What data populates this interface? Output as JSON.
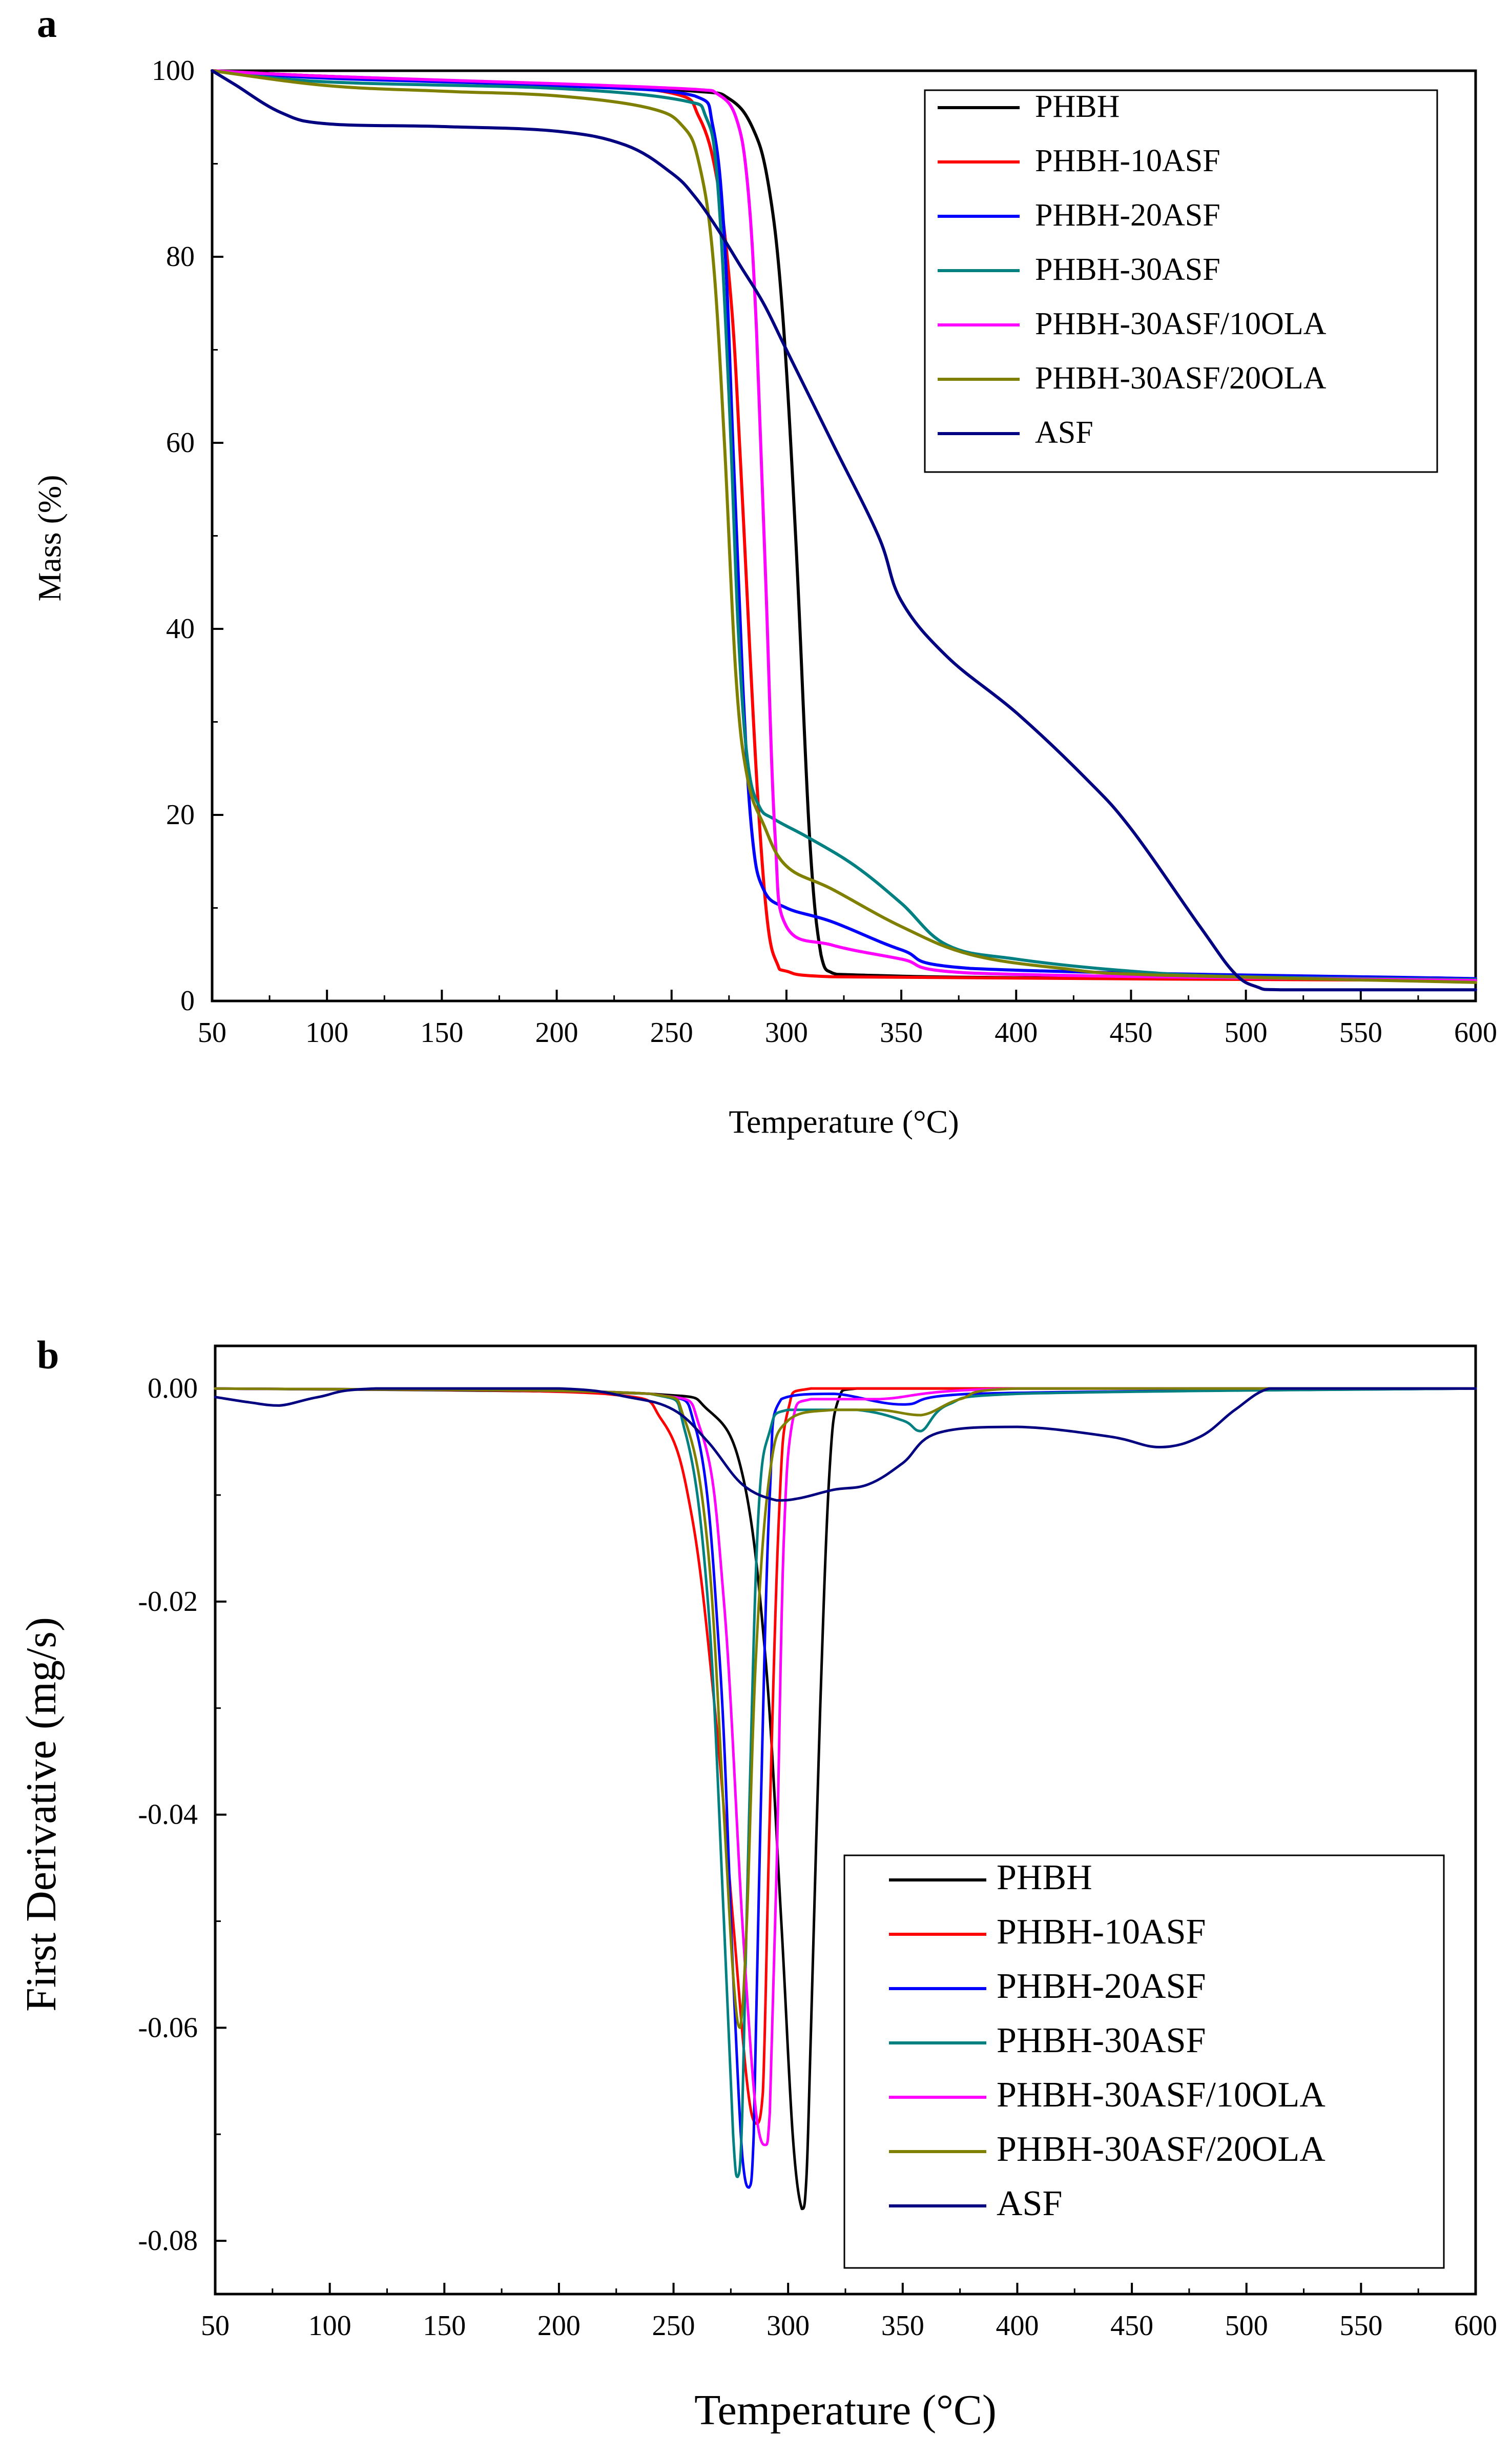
{
  "figure": {
    "panel_a_label": "a",
    "panel_b_label": "b"
  },
  "chart_data": [
    {
      "type": "line",
      "panel": "a",
      "title": "",
      "xlabel": "Temperature (°C)",
      "ylabel": "Mass (%)",
      "xlim": [
        50,
        600
      ],
      "ylim": [
        0,
        100
      ],
      "xticks": [
        50,
        100,
        150,
        200,
        250,
        300,
        350,
        400,
        450,
        500,
        550,
        600
      ],
      "yticks": [
        0,
        20,
        40,
        60,
        80,
        100
      ],
      "legend_position": "top-right",
      "series": [
        {
          "name": "PHBH",
          "color": "#000000",
          "x": [
            50,
            100,
            200,
            260,
            275,
            285,
            292,
            298,
            304,
            310,
            315,
            320,
            330,
            400,
            600
          ],
          "y": [
            100,
            99.4,
            98.5,
            97.8,
            97,
            94,
            88,
            75,
            50,
            18,
            5,
            3,
            2.8,
            2.5,
            2.3
          ]
        },
        {
          "name": "PHBH-10ASF",
          "color": "#ff0000",
          "x": [
            50,
            100,
            200,
            250,
            262,
            270,
            276,
            280,
            284,
            288,
            292,
            296,
            300,
            320,
            600
          ],
          "y": [
            100,
            99.4,
            98.5,
            97.6,
            95,
            88,
            75,
            58,
            38,
            20,
            8,
            4,
            3.2,
            2.6,
            2.2
          ]
        },
        {
          "name": "PHBH-20ASF",
          "color": "#0000ff",
          "x": [
            50,
            100,
            200,
            260,
            268,
            273,
            277,
            281,
            285,
            290,
            300,
            320,
            350,
            380,
            600
          ],
          "y": [
            100,
            99.2,
            98.4,
            97.3,
            94,
            82,
            58,
            34,
            18,
            12,
            10,
            8.5,
            5.5,
            3.5,
            2.4
          ]
        },
        {
          "name": "PHBH-30ASF",
          "color": "#008080",
          "x": [
            50,
            100,
            200,
            255,
            265,
            270,
            275,
            279,
            283,
            288,
            295,
            310,
            330,
            350,
            370,
            400,
            450,
            500,
            600
          ],
          "y": [
            100,
            98.8,
            98.1,
            96.8,
            95,
            88,
            65,
            40,
            26,
            21,
            19.5,
            17.5,
            14.5,
            10.5,
            6,
            4.5,
            3.2,
            2.6,
            2.3
          ]
        },
        {
          "name": "PHBH-30ASF/10OLA",
          "color": "#ff00ff",
          "x": [
            50,
            100,
            200,
            260,
            270,
            278,
            283,
            287,
            291,
            295,
            300,
            320,
            350,
            380,
            600
          ],
          "y": [
            100,
            99.4,
            98.6,
            98,
            97.5,
            95,
            88,
            72,
            45,
            18,
            8,
            6,
            4.5,
            3,
            2.2
          ]
        },
        {
          "name": "PHBH-30ASF/20OLA",
          "color": "#808000",
          "x": [
            50,
            100,
            150,
            200,
            240,
            255,
            262,
            268,
            273,
            278,
            283,
            290,
            300,
            320,
            350,
            380,
            420,
            460,
            600
          ],
          "y": [
            100,
            98.4,
            97.8,
            97.3,
            96,
            94,
            90,
            80,
            60,
            35,
            24,
            19,
            14.5,
            12,
            8,
            5,
            3.5,
            2.8,
            2
          ]
        },
        {
          "name": "ASF",
          "color": "#000080",
          "x": [
            50,
            60,
            80,
            100,
            150,
            200,
            230,
            250,
            260,
            270,
            280,
            290,
            300,
            320,
            340,
            350,
            370,
            400,
            430,
            450,
            480,
            495,
            505,
            515,
            600
          ],
          "y": [
            100,
            98.5,
            95.5,
            94.3,
            94,
            93.5,
            92,
            89,
            86.5,
            83,
            79,
            75,
            70,
            60,
            50,
            43,
            37,
            31,
            24,
            18.5,
            8,
            3,
            1.5,
            1.2,
            1.2
          ]
        }
      ]
    },
    {
      "type": "line",
      "panel": "b",
      "title": "",
      "xlabel": "Temperature (°C)",
      "ylabel": "First Derivative (mg/s)",
      "xlim": [
        50,
        600
      ],
      "ylim": [
        -0.085,
        0.004
      ],
      "xticks": [
        50,
        100,
        150,
        200,
        250,
        300,
        350,
        400,
        450,
        500,
        550,
        600
      ],
      "yticks": [
        0.0,
        -0.02,
        -0.04,
        -0.06,
        -0.08
      ],
      "ytick_labels": [
        "0.00",
        "-0.02",
        "-0.04",
        "-0.06",
        "-0.08"
      ],
      "legend_position": "bottom-right",
      "series": [
        {
          "name": "PHBH",
          "color": "#000000",
          "x": [
            50,
            240,
            265,
            280,
            290,
            297,
            302,
            306,
            308,
            310,
            314,
            318,
            322,
            330,
            600
          ],
          "y": [
            0,
            -0.0005,
            -0.002,
            -0.008,
            -0.025,
            -0.05,
            -0.07,
            -0.077,
            -0.074,
            -0.06,
            -0.03,
            -0.008,
            -0.001,
            0,
            0
          ]
        },
        {
          "name": "PHBH-10ASF",
          "color": "#ff0000",
          "x": [
            50,
            220,
            245,
            258,
            268,
            276,
            282,
            286,
            289,
            292,
            296,
            300,
            310,
            600
          ],
          "y": [
            0,
            -0.0005,
            -0.003,
            -0.012,
            -0.03,
            -0.05,
            -0.065,
            -0.069,
            -0.066,
            -0.04,
            -0.012,
            -0.002,
            0,
            0
          ]
        },
        {
          "name": "PHBH-20ASF",
          "color": "#0000ff",
          "x": [
            50,
            240,
            260,
            270,
            276,
            280,
            283,
            285,
            288,
            292,
            297,
            320,
            350,
            380,
            600
          ],
          "y": [
            0,
            -0.0005,
            -0.004,
            -0.025,
            -0.055,
            -0.072,
            -0.075,
            -0.07,
            -0.04,
            -0.01,
            -0.001,
            -0.0005,
            -0.0015,
            -0.0005,
            0
          ]
        },
        {
          "name": "PHBH-30ASF",
          "color": "#008080",
          "x": [
            50,
            240,
            255,
            265,
            272,
            276,
            278,
            280,
            283,
            287,
            292,
            300,
            330,
            350,
            358,
            370,
            400,
            600
          ],
          "y": [
            0,
            -0.0005,
            -0.004,
            -0.02,
            -0.05,
            -0.07,
            -0.074,
            -0.068,
            -0.04,
            -0.012,
            -0.004,
            -0.002,
            -0.002,
            -0.003,
            -0.004,
            -0.0015,
            -0.0005,
            0
          ]
        },
        {
          "name": "PHBH-30ASF/10OLA",
          "color": "#ff00ff",
          "x": [
            50,
            240,
            262,
            272,
            280,
            286,
            290,
            292,
            295,
            298,
            302,
            310,
            340,
            400,
            600
          ],
          "y": [
            0,
            -0.0005,
            -0.004,
            -0.02,
            -0.05,
            -0.068,
            -0.071,
            -0.068,
            -0.045,
            -0.015,
            -0.003,
            -0.001,
            -0.001,
            0,
            0
          ]
        },
        {
          "name": "PHBH-30ASF/20OLA",
          "color": "#808000",
          "x": [
            50,
            240,
            255,
            265,
            272,
            276,
            279,
            282,
            286,
            292,
            300,
            320,
            340,
            358,
            375,
            400,
            600
          ],
          "y": [
            0,
            -0.0005,
            -0.003,
            -0.015,
            -0.04,
            -0.055,
            -0.06,
            -0.05,
            -0.025,
            -0.008,
            -0.003,
            -0.002,
            -0.002,
            -0.0025,
            -0.001,
            0,
            0
          ]
        },
        {
          "name": "ASF",
          "color": "#000080",
          "x": [
            50,
            65,
            78,
            95,
            120,
            200,
            230,
            250,
            265,
            280,
            295,
            305,
            320,
            335,
            350,
            365,
            400,
            440,
            462,
            480,
            495,
            510,
            530,
            600
          ],
          "y": [
            -0.0008,
            -0.0013,
            -0.0016,
            -0.0008,
            0,
            0,
            -0.0008,
            -0.002,
            -0.005,
            -0.009,
            -0.0105,
            -0.0103,
            -0.0095,
            -0.009,
            -0.007,
            -0.0042,
            -0.0036,
            -0.0045,
            -0.0055,
            -0.0045,
            -0.002,
            0,
            0,
            0
          ]
        }
      ]
    }
  ]
}
